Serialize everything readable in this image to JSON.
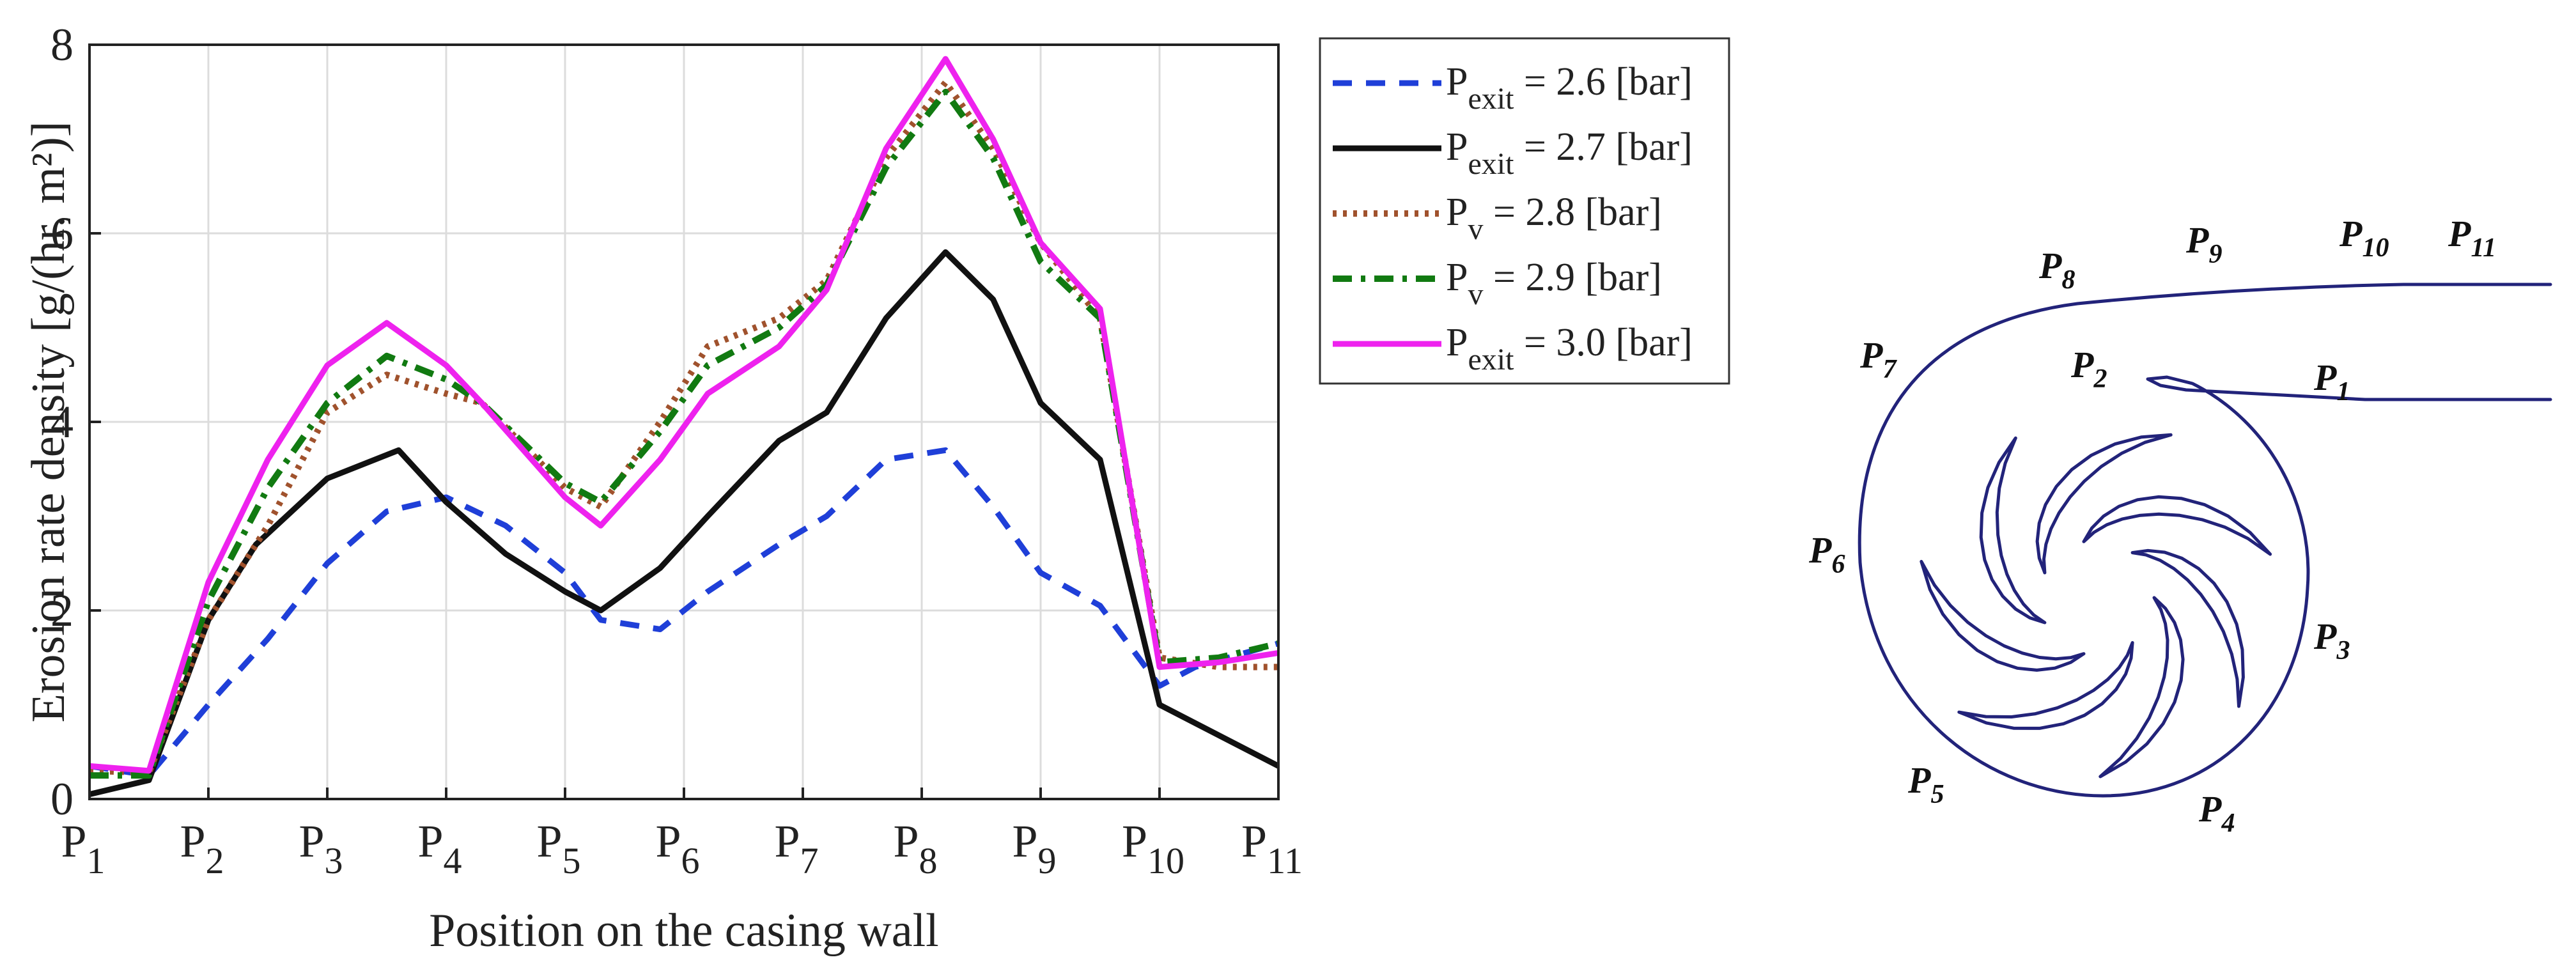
{
  "chart_data": {
    "type": "line",
    "title": "",
    "xlabel": "Position on the casing wall",
    "ylabel": "Erosion rate density [g/(hr. m²)]",
    "ylim": [
      0,
      8
    ],
    "yticks": [
      0,
      2,
      4,
      6,
      8
    ],
    "xlim": [
      1,
      11
    ],
    "grid": true,
    "legend_position": "outside-right",
    "categories": [
      "P1",
      "P2",
      "P3",
      "P4",
      "P5",
      "P6",
      "P7",
      "P8",
      "P9",
      "P10",
      "P11"
    ],
    "series": [
      {
        "name": "Pexit = 2.6 [bar]",
        "label_main": "P",
        "label_sub": "exit",
        "label_rest": " = 2.6 [bar]",
        "color": "#1f3fd8",
        "dash": "30,22",
        "width": 9,
        "x": [
          1.0,
          1.5,
          2.0,
          2.5,
          3.0,
          3.5,
          4.0,
          4.5,
          5.0,
          5.3,
          5.8,
          6.2,
          6.8,
          7.2,
          7.7,
          8.2,
          8.6,
          9.0,
          9.5,
          10.0,
          10.3,
          11.0
        ],
        "y": [
          0.35,
          0.25,
          1.0,
          1.7,
          2.5,
          3.05,
          3.2,
          2.9,
          2.4,
          1.9,
          1.8,
          2.2,
          2.7,
          3.0,
          3.6,
          3.7,
          3.1,
          2.4,
          2.05,
          1.2,
          1.4,
          1.65
        ]
      },
      {
        "name": "Pexit = 2.7 [bar]",
        "label_main": "P",
        "label_sub": "exit",
        "label_rest": " = 2.7 [bar]",
        "color": "#111111",
        "dash": "",
        "width": 9,
        "x": [
          1.0,
          1.5,
          2.0,
          2.4,
          3.0,
          3.6,
          4.0,
          4.5,
          5.0,
          5.3,
          5.8,
          6.2,
          6.8,
          7.2,
          7.7,
          8.2,
          8.6,
          9.0,
          9.5,
          10.0,
          11.0
        ],
        "y": [
          0.05,
          0.2,
          1.9,
          2.7,
          3.4,
          3.7,
          3.15,
          2.6,
          2.2,
          2.0,
          2.45,
          3.0,
          3.8,
          4.1,
          5.1,
          5.8,
          5.3,
          4.2,
          3.6,
          1.0,
          0.35
        ]
      },
      {
        "name": "Pv = 2.8 [bar]",
        "label_main": "P",
        "label_sub": "v",
        "label_rest": " = 2.8 [bar]",
        "color": "#a0522d",
        "dash": "6,10",
        "width": 10,
        "x": [
          1.0,
          1.5,
          2.0,
          2.5,
          3.0,
          3.5,
          4.0,
          4.3,
          5.0,
          5.3,
          5.8,
          6.2,
          6.8,
          7.2,
          7.7,
          8.2,
          8.6,
          9.0,
          9.5,
          10.0,
          10.5,
          11.0
        ],
        "y": [
          0.3,
          0.28,
          1.9,
          2.9,
          4.1,
          4.5,
          4.3,
          4.2,
          3.3,
          3.1,
          4.0,
          4.8,
          5.1,
          5.5,
          6.8,
          7.6,
          6.9,
          5.9,
          5.1,
          1.5,
          1.4,
          1.4
        ]
      },
      {
        "name": "Pv = 2.9 [bar]",
        "label_main": "P",
        "label_sub": "v",
        "label_rest": " = 2.9 [bar]",
        "color": "#117a11",
        "dash": "30,14,7,14",
        "width": 10,
        "x": [
          1.0,
          1.5,
          2.0,
          2.5,
          3.0,
          3.5,
          4.0,
          4.3,
          5.0,
          5.3,
          5.8,
          6.2,
          6.8,
          7.2,
          7.7,
          8.2,
          8.6,
          9.0,
          9.5,
          10.0,
          10.5,
          11.0
        ],
        "y": [
          0.25,
          0.25,
          2.1,
          3.3,
          4.2,
          4.7,
          4.45,
          4.2,
          3.35,
          3.15,
          3.9,
          4.6,
          5.0,
          5.45,
          6.7,
          7.5,
          6.8,
          5.7,
          5.1,
          1.45,
          1.5,
          1.65
        ]
      },
      {
        "name": "Pexit = 3.0 [bar]",
        "label_main": "P",
        "label_sub": "exit",
        "label_rest": " = 3.0 [bar]",
        "color": "#ee22ee",
        "dash": "",
        "width": 9,
        "x": [
          1.0,
          1.5,
          2.0,
          2.5,
          3.0,
          3.5,
          4.0,
          4.3,
          5.0,
          5.3,
          5.8,
          6.2,
          6.8,
          7.2,
          7.7,
          8.2,
          8.6,
          9.0,
          9.5,
          10.0,
          10.5,
          11.0
        ],
        "y": [
          0.35,
          0.3,
          2.3,
          3.6,
          4.6,
          5.05,
          4.6,
          4.2,
          3.2,
          2.9,
          3.6,
          4.3,
          4.8,
          5.4,
          6.9,
          7.85,
          7.0,
          5.9,
          5.2,
          1.4,
          1.45,
          1.55
        ]
      }
    ]
  },
  "diagram": {
    "points": [
      {
        "main": "P",
        "sub": "1"
      },
      {
        "main": "P",
        "sub": "2"
      },
      {
        "main": "P",
        "sub": "3"
      },
      {
        "main": "P",
        "sub": "4"
      },
      {
        "main": "P",
        "sub": "5"
      },
      {
        "main": "P",
        "sub": "6"
      },
      {
        "main": "P",
        "sub": "7"
      },
      {
        "main": "P",
        "sub": "8"
      },
      {
        "main": "P",
        "sub": "9"
      },
      {
        "main": "P",
        "sub": "10"
      },
      {
        "main": "P",
        "sub": "11"
      }
    ],
    "line_color": "#22237a"
  }
}
